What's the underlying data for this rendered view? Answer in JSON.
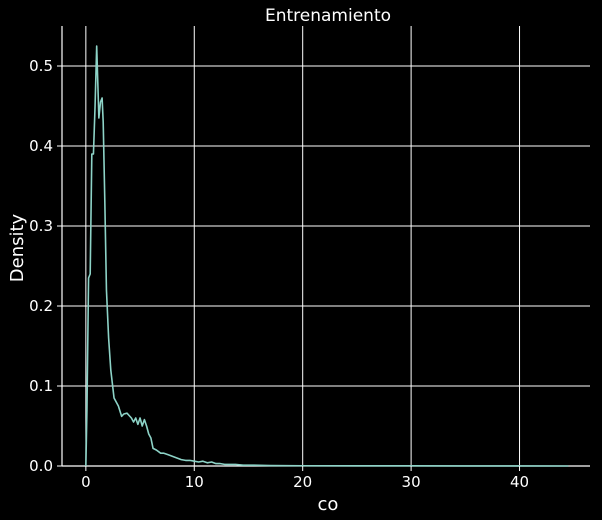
{
  "chart_data": {
    "type": "line",
    "title": "Entrenamiento",
    "xlabel": "co",
    "ylabel": "Density",
    "xlim": [
      -2.2,
      46.5
    ],
    "ylim": [
      0,
      0.55
    ],
    "x_ticks": [
      0,
      10,
      20,
      30,
      40
    ],
    "x_tick_labels": [
      "0",
      "10",
      "20",
      "30",
      "40"
    ],
    "y_ticks": [
      0.0,
      0.1,
      0.2,
      0.3,
      0.4,
      0.5
    ],
    "y_tick_labels": [
      "0.0",
      "0.1",
      "0.2",
      "0.3",
      "0.4",
      "0.5"
    ],
    "grid": true,
    "series": [
      {
        "color": "#8dd3c7",
        "x": [
          0,
          0.1,
          0.25,
          0.4,
          0.55,
          0.7,
          0.85,
          1.0,
          1.1,
          1.2,
          1.35,
          1.5,
          1.6,
          1.75,
          1.9,
          2.1,
          2.3,
          2.6,
          2.8,
          3.0,
          3.3,
          3.5,
          3.8,
          4.0,
          4.2,
          4.4,
          4.6,
          4.8,
          5.0,
          5.2,
          5.4,
          5.6,
          5.8,
          6.0,
          6.2,
          6.5,
          6.9,
          7.2,
          7.6,
          8.0,
          8.4,
          8.8,
          9.2,
          9.6,
          10.0,
          10.4,
          10.8,
          11.2,
          11.6,
          12.0,
          12.4,
          12.8,
          13.2,
          13.8,
          14.5,
          15.5,
          17.0,
          20.0,
          25.0,
          30.0,
          35.0,
          40.0,
          44.5
        ],
        "y": [
          0.0,
          0.07,
          0.235,
          0.24,
          0.39,
          0.39,
          0.45,
          0.525,
          0.48,
          0.435,
          0.455,
          0.46,
          0.43,
          0.33,
          0.22,
          0.16,
          0.12,
          0.085,
          0.08,
          0.075,
          0.062,
          0.065,
          0.066,
          0.063,
          0.06,
          0.055,
          0.06,
          0.052,
          0.06,
          0.05,
          0.058,
          0.05,
          0.04,
          0.035,
          0.022,
          0.02,
          0.016,
          0.016,
          0.014,
          0.012,
          0.01,
          0.008,
          0.007,
          0.007,
          0.006,
          0.005,
          0.006,
          0.004,
          0.005,
          0.003,
          0.003,
          0.002,
          0.002,
          0.002,
          0.001,
          0.001,
          0.0005,
          0.0003,
          0.0002,
          0.0002,
          0.0001,
          0.0001,
          0.0
        ]
      }
    ]
  }
}
